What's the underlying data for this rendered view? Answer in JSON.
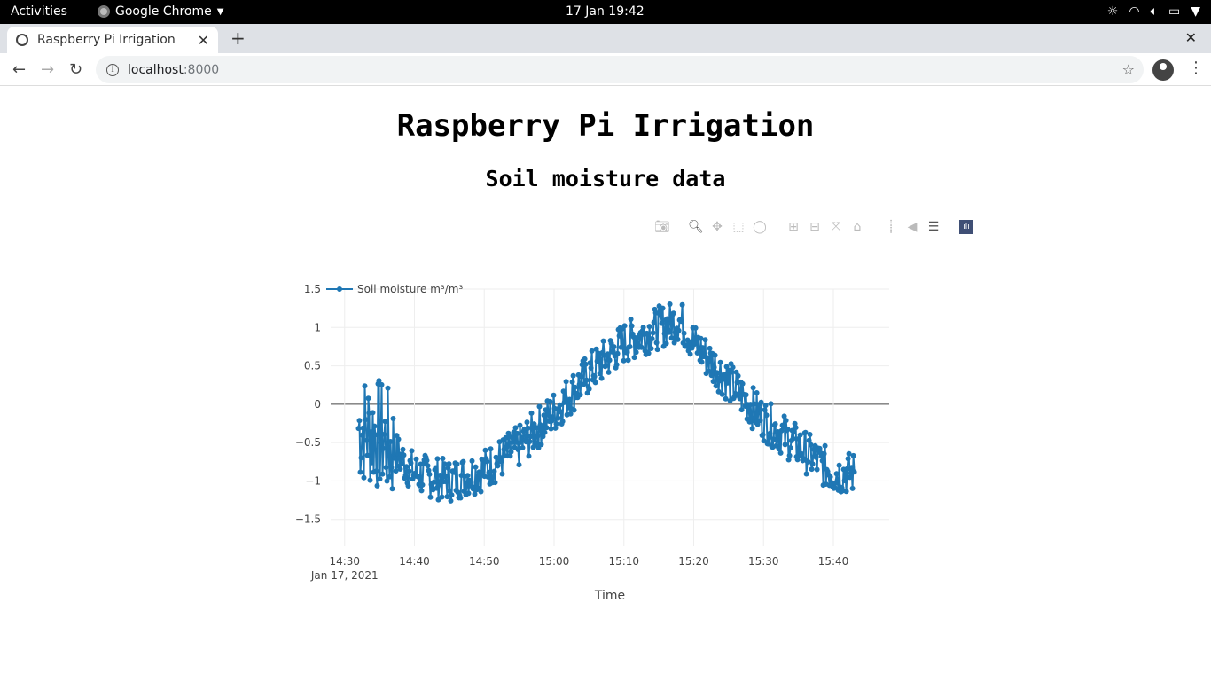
{
  "os_bar": {
    "activities": "Activities",
    "app_name": "Google Chrome",
    "clock": "17 Jan  19:42"
  },
  "browser": {
    "tab_title": "Raspberry Pi Irrigation",
    "url_host": "localhost",
    "url_port": ":8000"
  },
  "page": {
    "title": "Raspberry Pi Irrigation",
    "subtitle": "Soil moisture data"
  },
  "modebar": {
    "buttons": [
      "camera-icon",
      "zoom-icon",
      "pan-icon",
      "box-select-icon",
      "lasso-select-icon",
      "zoom-in-icon",
      "zoom-out-icon",
      "autoscale-icon",
      "reset-axes-icon",
      "spike-lines-icon",
      "hover-closest-icon",
      "hover-compare-icon",
      "plotly-logo-icon"
    ]
  },
  "chart_data": {
    "type": "line",
    "xlabel": "Time",
    "ylabel": "",
    "x_ticks": [
      "14:30",
      "14:40",
      "14:50",
      "15:00",
      "15:10",
      "15:20",
      "15:30",
      "15:40"
    ],
    "x_date_label": "Jan 17, 2021",
    "y_ticks": [
      "1.5",
      "1",
      "0.5",
      "0",
      "−0.5",
      "−1",
      "−1.5"
    ],
    "ylim": [
      -1.85,
      1.5
    ],
    "xlim": [
      "2021-01-17 14:28",
      "2021-01-17 15:48"
    ],
    "grid": true,
    "legend": "top-left",
    "series": [
      {
        "name": "Soil moisture m³/m³",
        "color": "#1f77b4",
        "x_start": "2021-01-17 14:32",
        "x_end": "2021-01-17 15:43",
        "trend_x": [
          "14:32",
          "14:35",
          "14:40",
          "14:45",
          "14:50",
          "14:55",
          "15:00",
          "15:05",
          "15:10",
          "15:15",
          "15:18",
          "15:20",
          "15:25",
          "15:30",
          "15:35",
          "15:40",
          "15:43"
        ],
        "trend_y": [
          -0.3,
          -0.4,
          -0.9,
          -1.0,
          -0.85,
          -0.55,
          -0.1,
          0.4,
          0.8,
          1.0,
          1.1,
          0.8,
          0.3,
          -0.2,
          -0.55,
          -0.9,
          -0.9
        ]
      }
    ]
  }
}
